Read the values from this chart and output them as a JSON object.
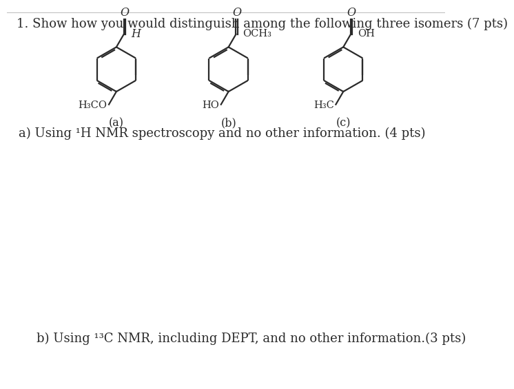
{
  "title_text": "1. Show how you would distinguish among the following three isomers (7 pts)",
  "question_a_text": "a) Using ¹H NMR spectroscopy and no other information. (4 pts)",
  "question_b_text": "b) Using ¹³C NMR, including DEPT, and no other information.(3 pts)",
  "label_a": "(a)",
  "label_b": "(b)",
  "label_c": "(c)",
  "background_color": "#ffffff",
  "text_color": "#2a2a2a",
  "line_color": "#2a2a2a",
  "font_size_title": 13.0,
  "font_size_labels": 11.5,
  "font_size_question": 13.0,
  "font_size_chem": 10.5,
  "font_size_chem_sub": 8.0
}
